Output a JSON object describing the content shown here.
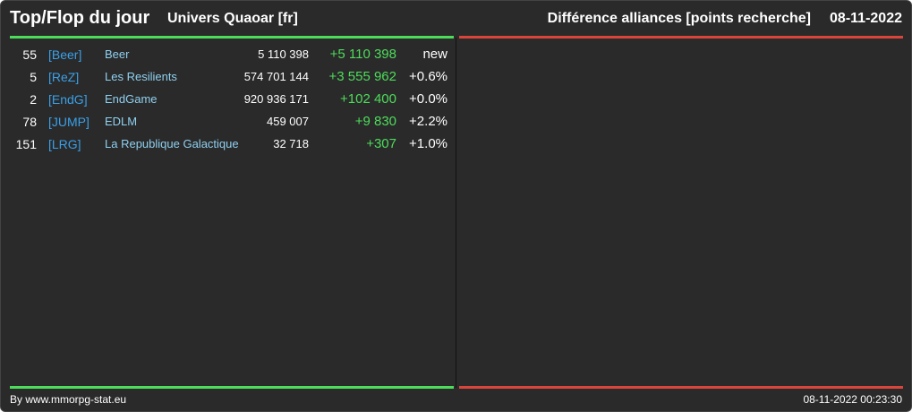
{
  "header": {
    "title": "Top/Flop du jour",
    "subtitle": "Univers Quaoar [fr]",
    "right_title": "Différence alliances [points recherche]",
    "date": "08-11-2022"
  },
  "table": {
    "rows": [
      [
        "55",
        "[Beer]",
        "Beer",
        "5 110 398",
        "+5 110 398",
        "new"
      ],
      [
        "5",
        "[ReZ]",
        "Les Resilients",
        "574 701 144",
        "+3 555 962",
        "+0.6%"
      ],
      [
        "2",
        "[EndG]",
        "EndGame",
        "920 936 171",
        "+102 400",
        "+0.0%"
      ],
      [
        "78",
        "[JUMP]",
        "EDLM",
        "459 007",
        "+9 830",
        "+2.2%"
      ],
      [
        "151",
        "[LRG]",
        "La Republique Galactique",
        "32 718",
        "+307",
        "+1.0%"
      ]
    ]
  },
  "footer": {
    "left": "By www.mmorpg-stat.eu",
    "right": "08-11-2022 00:23:30"
  }
}
